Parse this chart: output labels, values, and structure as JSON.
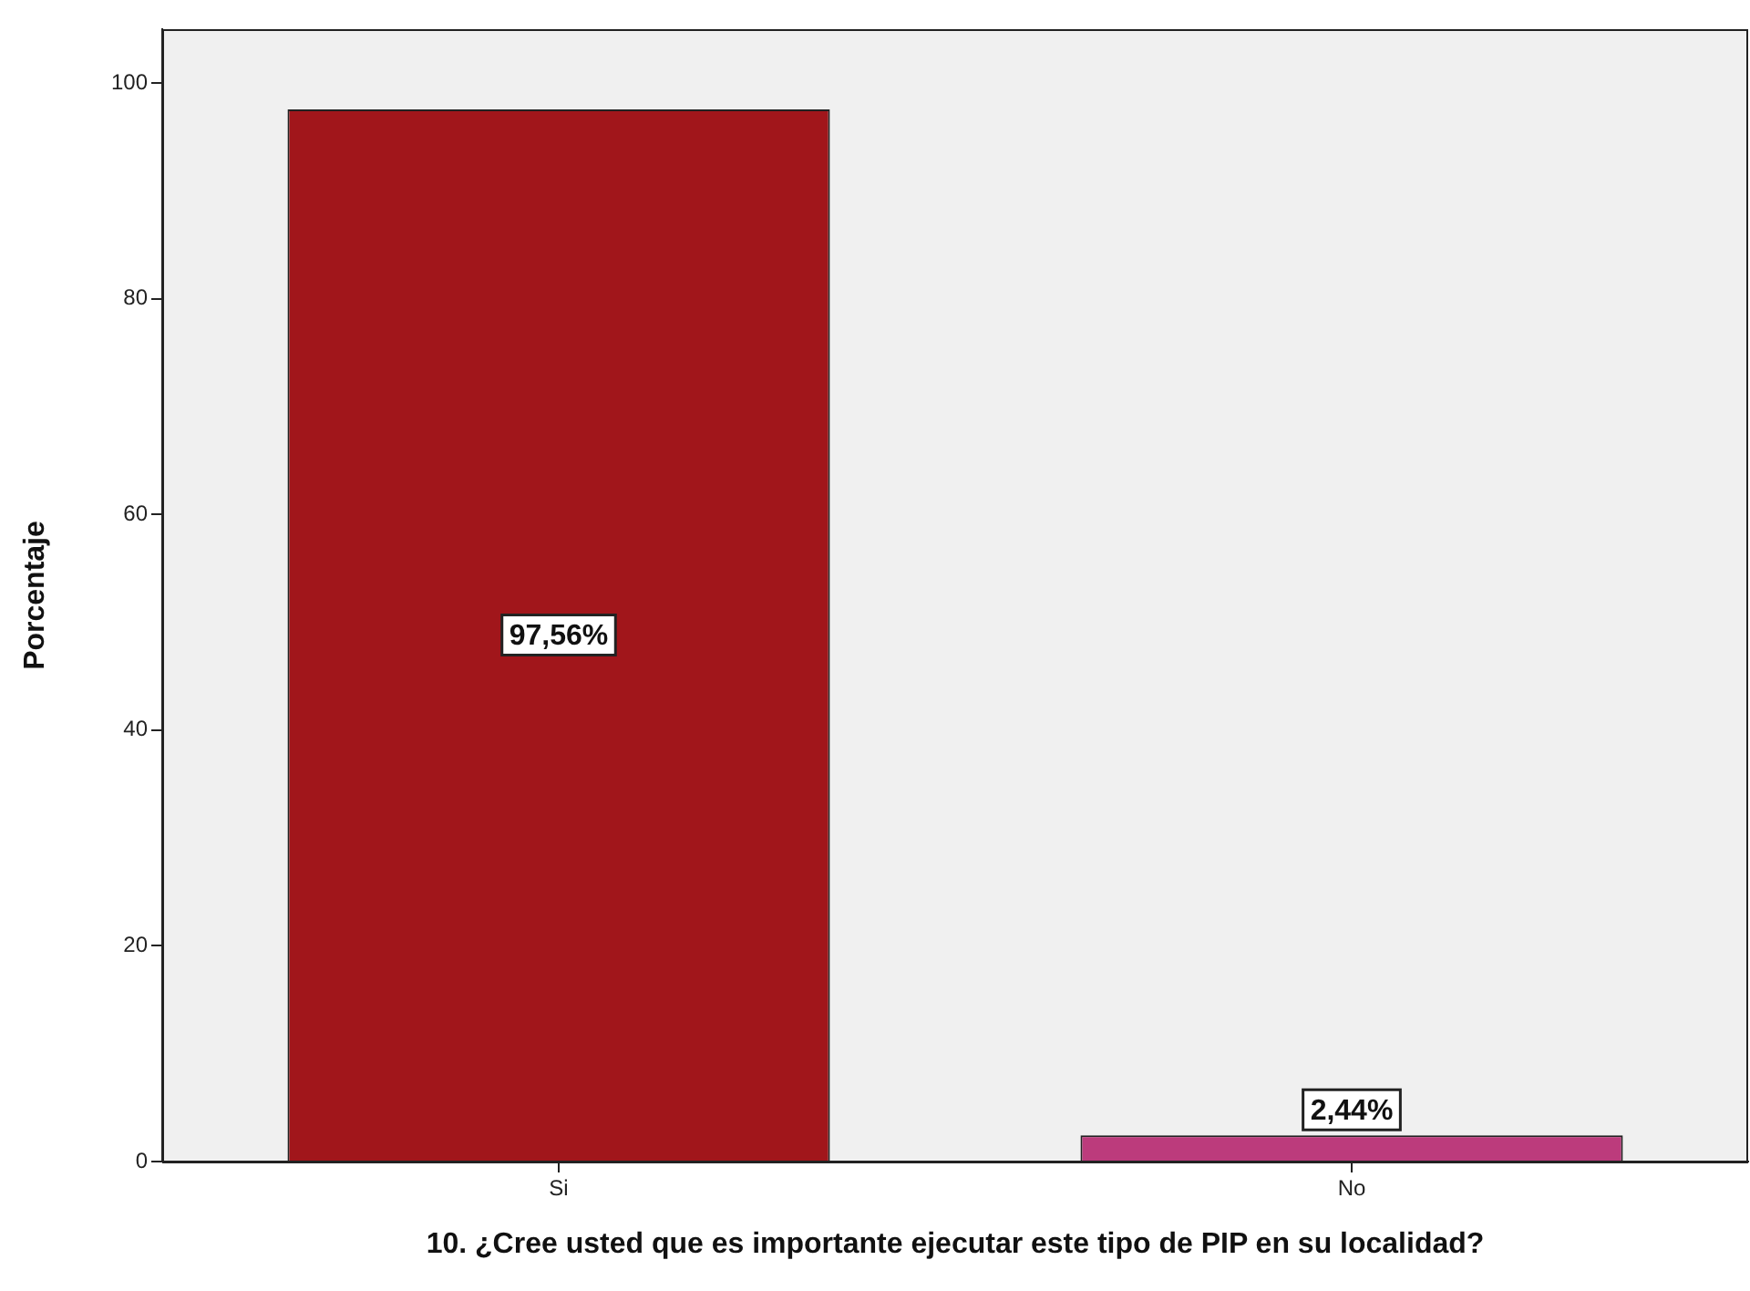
{
  "chart_data": {
    "type": "bar",
    "xlabel": "10. ¿Cree usted que es importante ejecutar este tipo de PIP en su localidad?",
    "ylabel": "Porcentaje",
    "categories": [
      "Si",
      "No"
    ],
    "values": [
      97.56,
      2.44
    ],
    "colors": [
      "#a1161b",
      "#bc3b7c"
    ],
    "value_labels": [
      "97,56%",
      "2,44%"
    ],
    "ylim": [
      0,
      105
    ],
    "yticks": [
      0,
      20,
      40,
      60,
      80,
      100
    ],
    "legend": false
  }
}
